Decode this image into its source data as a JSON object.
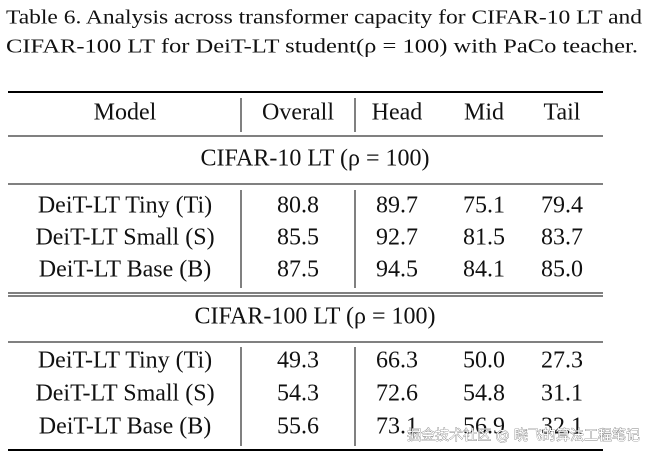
{
  "caption": [
    "Table 6. Analysis across transformer capacity for CIFAR-10 LT and",
    "CIFAR-100 LT for DeiT-LT student(ρ = 100) with PaCo teacher."
  ],
  "table": {
    "header": [
      "Model",
      "Overall",
      "Head",
      "Mid",
      "Tail"
    ],
    "sections": [
      {
        "title": "CIFAR-10 LT (ρ = 100)",
        "rows": [
          [
            "DeiT-LT Tiny (Ti)",
            "80.8",
            "89.7",
            "75.1",
            "79.4"
          ],
          [
            "DeiT-LT Small (S)",
            "85.5",
            "92.7",
            "81.5",
            "83.7"
          ],
          [
            "DeiT-LT Base (B)",
            "87.5",
            "94.5",
            "84.1",
            "85.0"
          ]
        ]
      },
      {
        "title": "CIFAR-100 LT (ρ = 100)",
        "rows": [
          [
            "DeiT-LT Tiny (Ti)",
            "49.3",
            "66.3",
            "50.0",
            "27.3"
          ],
          [
            "DeiT-LT Small (S)",
            "54.3",
            "72.6",
            "54.8",
            "31.1"
          ],
          [
            "DeiT-LT Base (B)",
            "55.6",
            "73.1",
            "56.9",
            "32.1"
          ]
        ]
      }
    ]
  },
  "watermark": "掘金技术社区 @ 晓飞的算法工程笔记"
}
